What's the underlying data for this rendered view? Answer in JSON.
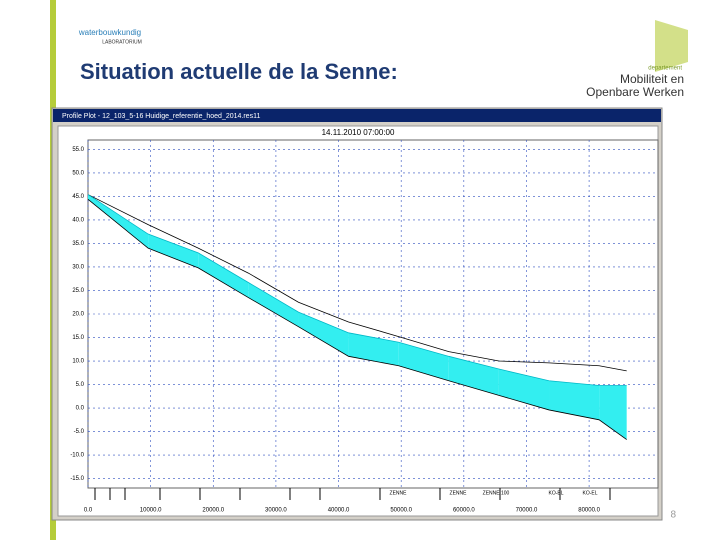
{
  "slide": {
    "logo_line1": "waterbouwkundig",
    "logo_line2": "LABORATORIUM",
    "title": "Situation actuelle de la Senne:",
    "dept_small": "departement",
    "dept_line1": "Mobiliteit en",
    "dept_line2": "Openbare Werken",
    "page_number": "8"
  },
  "chart_data": {
    "type": "line",
    "window_title": "Profile Plot - 12_103_5-16 Huidige_referentie_hoed_2014.res11",
    "title": "14.11.2010 07:00:00",
    "x": [
      0,
      9600,
      17600,
      25600,
      33600,
      41600,
      49600,
      57600,
      65600,
      73600,
      81600,
      86000
    ],
    "series": [
      {
        "color": "#000000",
        "values": [
          45.4,
          39,
          34,
          28.7,
          22.5,
          18.3,
          15.2,
          12,
          10,
          9.6,
          9,
          7.9
        ]
      },
      {
        "color": "#00b8c8",
        "fill": "#33eef0",
        "values": [
          45.4,
          37,
          33,
          26.7,
          20.4,
          16,
          14,
          11,
          8.3,
          5.8,
          4.8,
          4.8
        ]
      },
      {
        "color": "#000000",
        "values": [
          44.4,
          34,
          29.8,
          23.5,
          17.3,
          11,
          9,
          5.8,
          2.7,
          -0.4,
          -2.5,
          -6.7
        ]
      }
    ],
    "xlim": [
      0,
      91000
    ],
    "ylim": [
      -17,
      57
    ],
    "xticks": [
      {
        "value": 0,
        "label": "0.0"
      },
      {
        "value": 10000,
        "label": "10000.0"
      },
      {
        "value": 20000,
        "label": "20000.0"
      },
      {
        "value": 30000,
        "label": "30000.0"
      },
      {
        "value": 40000,
        "label": "40000.0"
      },
      {
        "value": 50000,
        "label": "50000.0"
      },
      {
        "value": 60000,
        "label": "60000.0"
      },
      {
        "value": 70000,
        "label": "70000.0"
      },
      {
        "value": 80000,
        "label": "80000.0"
      }
    ],
    "yticks": [
      {
        "value": 55,
        "label": "55.0"
      },
      {
        "value": 50,
        "label": "50.0"
      },
      {
        "value": 45,
        "label": "45.0"
      },
      {
        "value": 40,
        "label": "40.0"
      },
      {
        "value": 35,
        "label": "35.0"
      },
      {
        "value": 30,
        "label": "30.0"
      },
      {
        "value": 25,
        "label": "25.0"
      },
      {
        "value": 20,
        "label": "20.0"
      },
      {
        "value": 15,
        "label": "15.0"
      },
      {
        "value": 10,
        "label": "10.0"
      },
      {
        "value": 5,
        "label": "5.0"
      },
      {
        "value": 0,
        "label": "0.0"
      },
      {
        "value": -5,
        "label": "-5.0"
      },
      {
        "value": -10,
        "label": "-10.0"
      },
      {
        "value": -15,
        "label": "-15.0"
      }
    ],
    "grid": true,
    "branch_labels": [
      "ZENNE",
      "ZENNE",
      "ZENNE 100",
      "KO-EL",
      "KO-EL"
    ]
  }
}
